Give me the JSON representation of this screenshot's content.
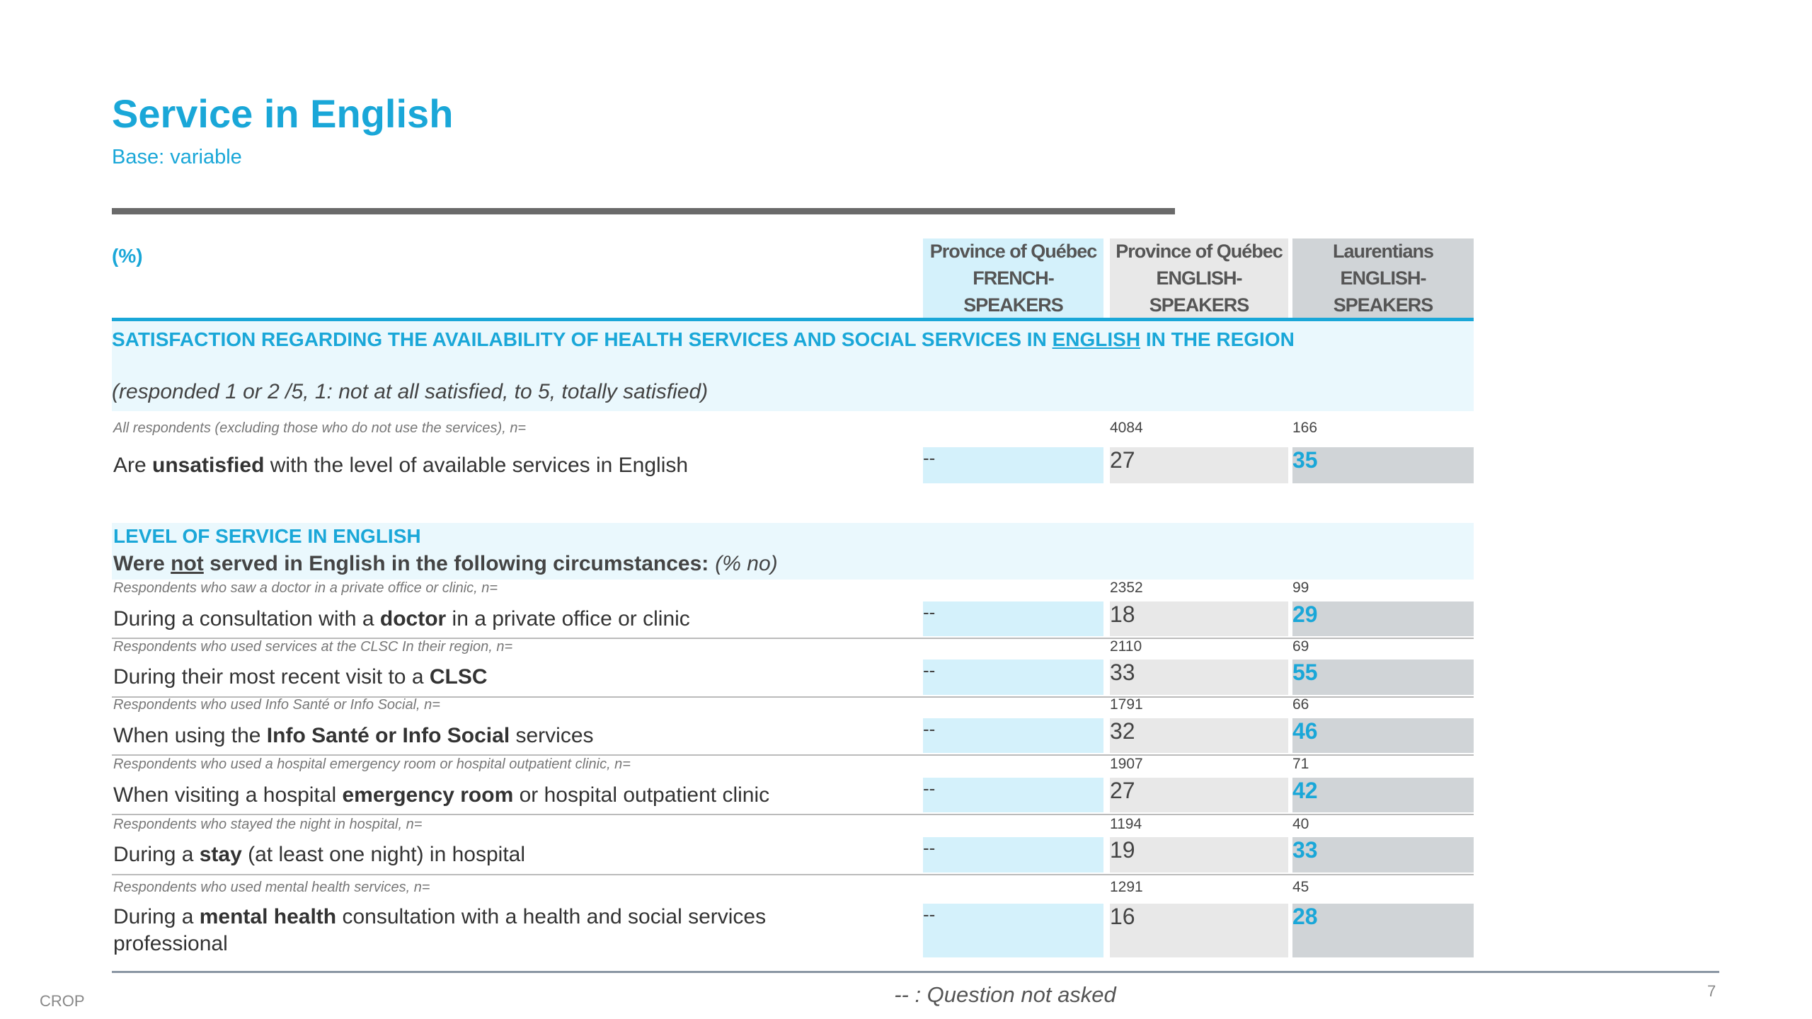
{
  "header": {
    "title": "Service in English",
    "subtitle": "Base: variable"
  },
  "table": {
    "unit_label": "(%)",
    "columns": [
      [
        "Province of Québec",
        "FRENCH-",
        "SPEAKERS"
      ],
      [
        "Province of Québec",
        "ENGLISH-",
        "SPEAKERS"
      ],
      [
        "Laurentians",
        "ENGLISH-",
        "SPEAKERS"
      ]
    ],
    "sections": [
      {
        "title": [
          "SATISFACTION REGARDING THE AVAILABILITY OF HEALTH SERVICES AND SOCIAL SERVICES IN ",
          "ENGLISH",
          " IN THE REGION"
        ],
        "note": "(responded 1 or 2 /5, 1: not at all satisfied, to 5, totally satisfied)",
        "rows": [
          {
            "base_label": "All respondents (excluding those who do not use the services), n=",
            "base_n": [
              4084,
              166
            ],
            "label": [
              "Are ",
              "unsatisfied",
              " with the level of available services in English"
            ],
            "values": [
              "--",
              27,
              35
            ]
          }
        ]
      },
      {
        "title": [
          "LEVEL OF SERVICE IN ENGLISH"
        ],
        "intro": [
          "Were ",
          "not",
          " served in English in the following circumstances:"
        ],
        "intro_note": "(% no)",
        "rows": [
          {
            "base_label": "Respondents who saw a doctor in a private office or clinic, n=",
            "base_n": [
              2352,
              99
            ],
            "label": [
              "During a consultation with a ",
              "doctor",
              " in a private office or clinic"
            ],
            "values": [
              "--",
              18,
              29
            ]
          },
          {
            "base_label": "Respondents who used services at the CLSC In their region, n=",
            "base_n": [
              2110,
              69
            ],
            "label": [
              "During their most recent visit to a ",
              "CLSC"
            ],
            "values": [
              "--",
              33,
              55
            ]
          },
          {
            "base_label": "Respondents who used Info Santé or Info Social, n=",
            "base_n": [
              1791,
              66
            ],
            "label": [
              "When using the ",
              "Info Santé or Info Social",
              " services"
            ],
            "values": [
              "--",
              32,
              46
            ]
          },
          {
            "base_label": "Respondents who used a hospital emergency room or hospital outpatient clinic, n=",
            "base_n": [
              1907,
              71
            ],
            "label": [
              "When visiting a hospital ",
              "emergency room",
              " or hospital outpatient clinic"
            ],
            "values": [
              "--",
              27,
              42
            ]
          },
          {
            "base_label": "Respondents who stayed the night in hospital, n=",
            "base_n": [
              1194,
              40
            ],
            "label": [
              "During a ",
              "stay",
              " (at least one night) in hospital"
            ],
            "values": [
              "--",
              19,
              33
            ]
          },
          {
            "base_label": "Respondents who used mental health services, n=",
            "base_n": [
              1291,
              45
            ],
            "label": [
              "During a ",
              "mental health",
              " consultation with a health and social services professional"
            ],
            "values": [
              "--",
              16,
              28
            ]
          }
        ]
      }
    ]
  },
  "footer": {
    "brand": "CROP",
    "note": "-- : Question not asked",
    "page": "7"
  }
}
